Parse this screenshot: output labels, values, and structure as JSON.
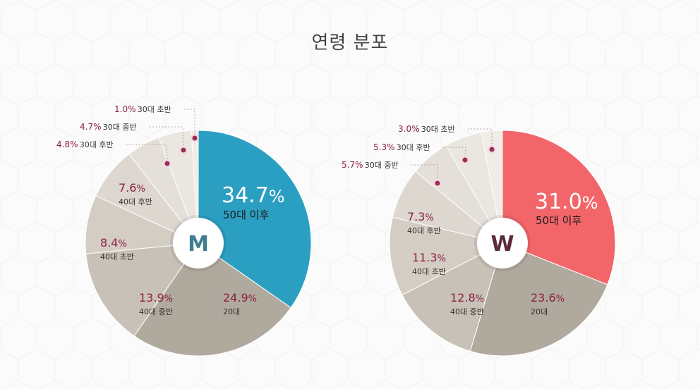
{
  "page": {
    "title": "연령 분포"
  },
  "colors": {
    "accent_text": "#8b1f44",
    "label_text": "#333333",
    "leader": "#9c8f8f",
    "dot_fill": "#9b2d55",
    "dot_ring": "#f2dde5"
  },
  "chart_data": [
    {
      "type": "pie",
      "title": "",
      "center_label": "M",
      "center_color": "#3e7c8e",
      "slices": [
        {
          "label": "50대 이후",
          "pct_text": "34.7%",
          "value": 34.7,
          "color": "#2b9fc2",
          "highlight": true
        },
        {
          "label": "20대",
          "pct_text": "24.9%",
          "value": 24.9,
          "color": "#b0a99e"
        },
        {
          "label": "40대 중반",
          "pct_text": "13.9%",
          "value": 13.9,
          "color": "#c8c1b7"
        },
        {
          "label": "40대 초반",
          "pct_text": "8.4%",
          "value": 8.4,
          "color": "#d4cdc4"
        },
        {
          "label": "40대 후반",
          "pct_text": "7.6%",
          "value": 7.6,
          "color": "#ddd7cf"
        },
        {
          "label": "30대 후반",
          "pct_text": "4.8%",
          "value": 4.8,
          "color": "#e4dfd8",
          "small": true
        },
        {
          "label": "30대 중반",
          "pct_text": "4.7%",
          "value": 4.7,
          "color": "#eae6e0",
          "small": true
        },
        {
          "label": "30대 초반",
          "pct_text": "1.0%",
          "value": 1.0,
          "color": "#f0ece7",
          "small": true
        }
      ]
    },
    {
      "type": "pie",
      "title": "",
      "center_label": "W",
      "center_color": "#5b2a3c",
      "slices": [
        {
          "label": "50대 이후",
          "pct_text": "31.0%",
          "value": 31.0,
          "color": "#f2666a",
          "highlight": true
        },
        {
          "label": "20대",
          "pct_text": "23.6%",
          "value": 23.6,
          "color": "#b0a99e"
        },
        {
          "label": "40대 중반",
          "pct_text": "12.8%",
          "value": 12.8,
          "color": "#c8c1b7"
        },
        {
          "label": "40대 초반",
          "pct_text": "11.3%",
          "value": 11.3,
          "color": "#d4cdc4"
        },
        {
          "label": "40대 후반",
          "pct_text": "7.3%",
          "value": 7.3,
          "color": "#ddd7cf"
        },
        {
          "label": "30대 중반",
          "pct_text": "5.7%",
          "value": 5.7,
          "color": "#e4dfd8",
          "small": true
        },
        {
          "label": "30대 후반",
          "pct_text": "5.3%",
          "value": 5.3,
          "color": "#eae6e0",
          "small": true
        },
        {
          "label": "30대 초반",
          "pct_text": "3.0%",
          "value": 3.0,
          "color": "#f0ece7",
          "small": true
        }
      ]
    }
  ]
}
